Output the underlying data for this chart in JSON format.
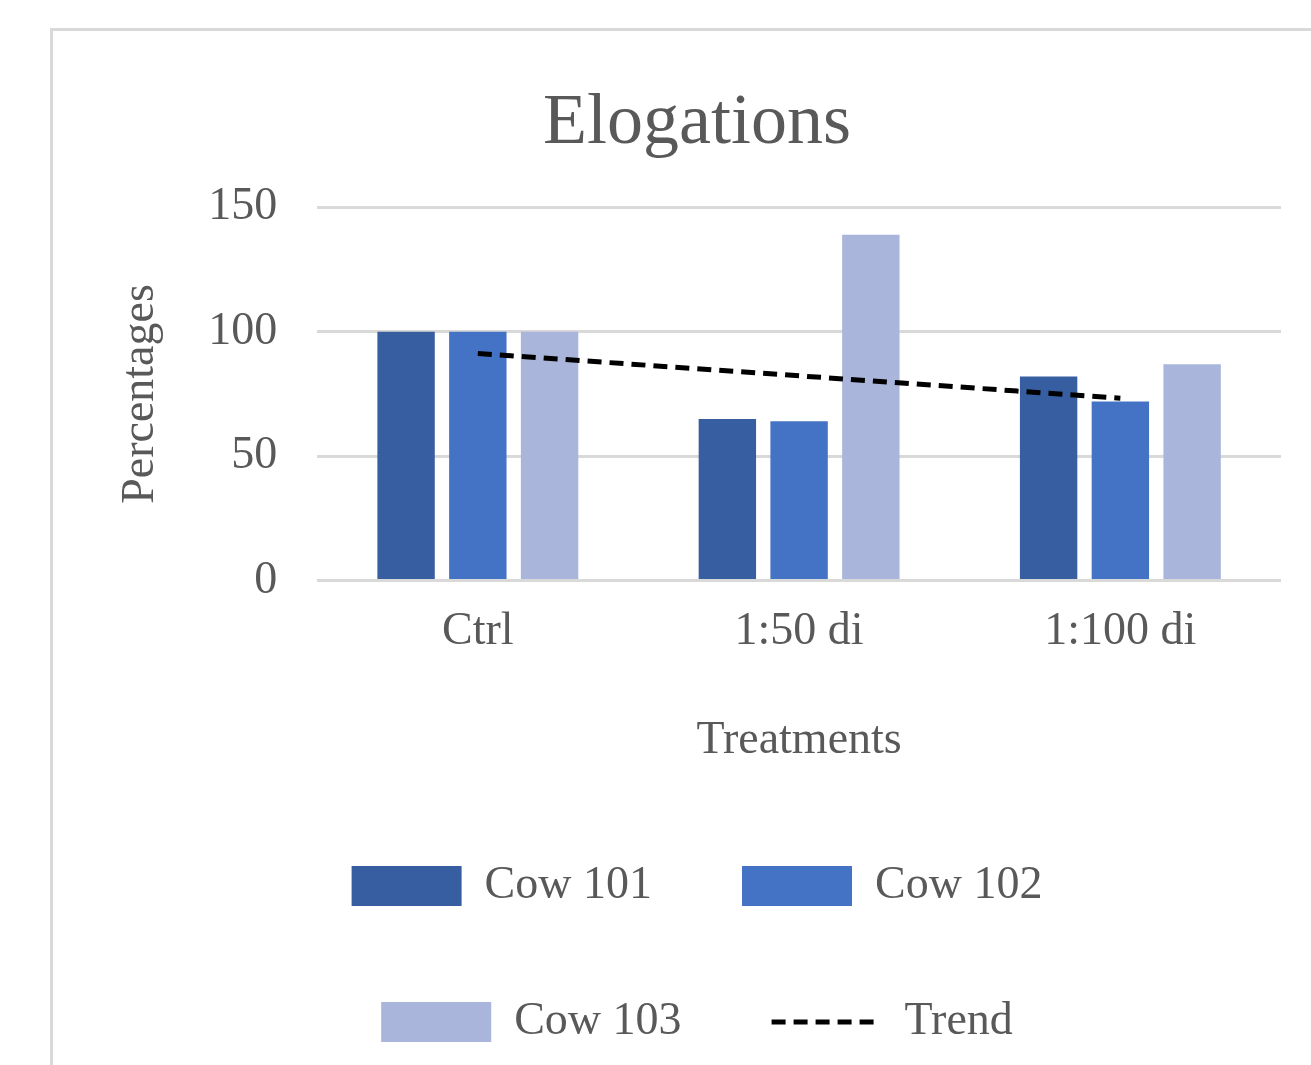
{
  "chart_data": {
    "type": "bar",
    "title": "Elogations",
    "xlabel": "Treatments",
    "ylabel": "Percentages",
    "categories": [
      "Ctrl",
      "1:50 di",
      "1:100 di"
    ],
    "series": [
      {
        "name": "Cow 101",
        "color": "#365ea0",
        "values": [
          100,
          65,
          82
        ]
      },
      {
        "name": "Cow 102",
        "color": "#4472c4",
        "values": [
          100,
          64,
          72
        ]
      },
      {
        "name": "Cow 103",
        "color": "#a9b5da",
        "values": [
          100,
          139,
          87
        ]
      },
      {
        "name": "Trend",
        "type": "line",
        "color": "#000000",
        "x": [
          "Ctrl",
          "1:100 di"
        ],
        "values": [
          91.3,
          73.3
        ],
        "line_style": "dashed",
        "marker": "none"
      }
    ],
    "ylim": [
      0,
      150
    ],
    "yticks": [
      0,
      50,
      100,
      150
    ],
    "grid": "y",
    "legend": "bottom"
  }
}
